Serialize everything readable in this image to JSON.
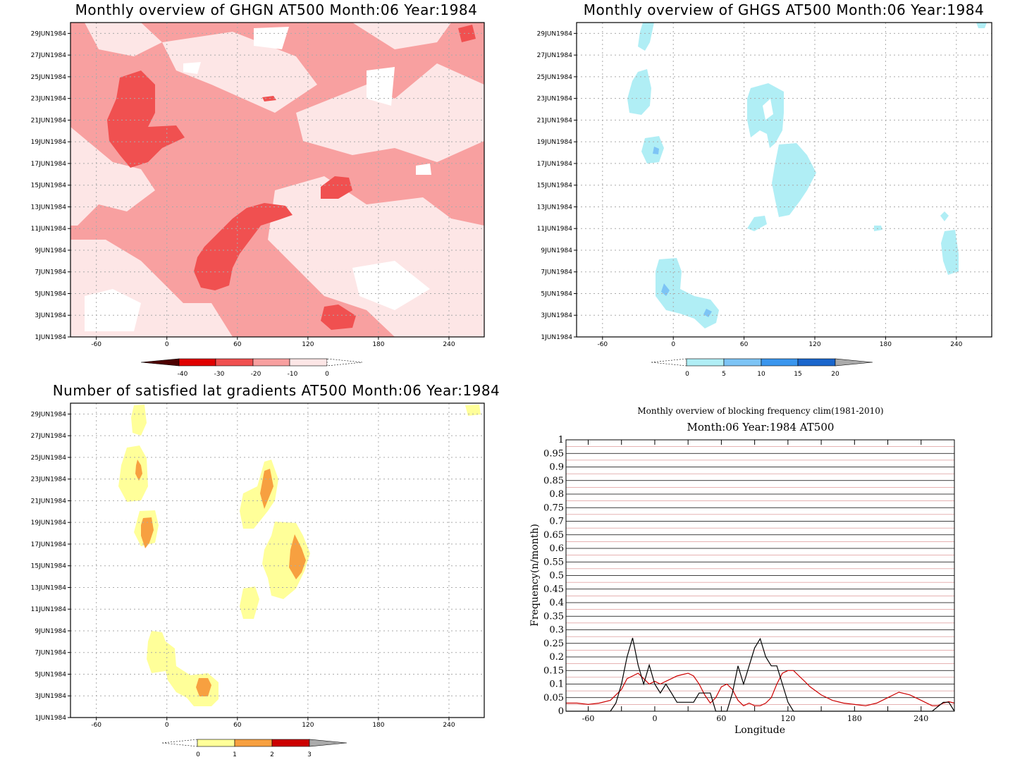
{
  "colors": {
    "ghgn_levels": [
      "#4d0000",
      "#e00000",
      "#f05050",
      "#f8a0a0",
      "#fde6e6"
    ],
    "ghgs_levels": [
      "#b0eef5",
      "#7dc4f5",
      "#3a96ee",
      "#1a66cc",
      "#aaaaaa"
    ],
    "nsg_levels": [
      "#ffff99",
      "#f7a040",
      "#cc0000",
      "#aaaaaa"
    ],
    "clim_line": "#cc0000",
    "year_line": "#000000"
  },
  "date_ticks": [
    "1JUN1984",
    "3JUN1984",
    "5JUN1984",
    "7JUN1984",
    "9JUN1984",
    "11JUN1984",
    "13JUN1984",
    "15JUN1984",
    "17JUN1984",
    "19JUN1984",
    "21JUN1984",
    "23JUN1984",
    "25JUN1984",
    "27JUN1984",
    "29JUN1984"
  ],
  "lon_ticks": [
    "-60",
    "0",
    "60",
    "120",
    "180",
    "240"
  ],
  "chart_data": [
    {
      "type": "heatmap",
      "title": "Monthly overview of GHGN AT500 Month:06 Year:1984",
      "x_range": [
        -82,
        270
      ],
      "y_range": [
        "1JUN1984",
        "30JUN1984"
      ],
      "grid": true,
      "colorbar": {
        "ticks": [
          "-40",
          "-30",
          "-20",
          "-10",
          "0"
        ]
      }
    },
    {
      "type": "heatmap",
      "title": "Monthly overview of GHGS AT500 Month:06 Year:1984",
      "x_range": [
        -82,
        270
      ],
      "y_range": [
        "1JUN1984",
        "30JUN1984"
      ],
      "grid": true,
      "colorbar": {
        "ticks": [
          "0",
          "5",
          "10",
          "15",
          "20"
        ]
      }
    },
    {
      "type": "heatmap",
      "title": "Number of satisfied lat gradients AT500 Month:06 Year:1984",
      "x_range": [
        -82,
        270
      ],
      "y_range": [
        "1JUN1984",
        "30JUN1984"
      ],
      "grid": true,
      "colorbar": {
        "ticks": [
          "0",
          "1",
          "2",
          "3"
        ]
      }
    },
    {
      "type": "line",
      "title": "Monthly overview of blocking frequency clim(1981-2010)",
      "subtitle": "Month:06 Year:1984  AT500",
      "xlabel": "Longitude",
      "ylabel": "Frequency(n/month)",
      "xlim": [
        -80,
        270
      ],
      "ylim": [
        0,
        1
      ],
      "x_ticks": [
        "-60",
        "0",
        "60",
        "120",
        "180",
        "240"
      ],
      "y_ticks": [
        "0",
        "0.05",
        "0.1",
        "0.15",
        "0.2",
        "0.25",
        "0.3",
        "0.35",
        "0.4",
        "0.45",
        "0.5",
        "0.55",
        "0.6",
        "0.65",
        "0.7",
        "0.75",
        "0.8",
        "0.85",
        "0.9",
        "0.95",
        "1"
      ],
      "grid": true,
      "series": [
        {
          "x": [
            -80,
            -70,
            -60,
            -50,
            -40,
            -30,
            -25,
            -20,
            -15,
            -10,
            -5,
            0,
            5,
            10,
            15,
            20,
            25,
            30,
            35,
            40,
            45,
            50,
            55,
            60,
            65,
            70,
            75,
            80,
            85,
            90,
            95,
            100,
            105,
            110,
            115,
            120,
            125,
            130,
            135,
            140,
            150,
            160,
            170,
            180,
            190,
            200,
            210,
            220,
            230,
            240,
            250,
            255,
            260,
            265,
            270
          ],
          "y": [
            0.03,
            0.03,
            0.025,
            0.03,
            0.04,
            0.08,
            0.12,
            0.13,
            0.14,
            0.12,
            0.1,
            0.11,
            0.1,
            0.11,
            0.12,
            0.13,
            0.135,
            0.14,
            0.13,
            0.1,
            0.06,
            0.03,
            0.05,
            0.09,
            0.1,
            0.08,
            0.04,
            0.02,
            0.03,
            0.02,
            0.02,
            0.03,
            0.05,
            0.1,
            0.14,
            0.15,
            0.15,
            0.13,
            0.11,
            0.09,
            0.06,
            0.04,
            0.03,
            0.025,
            0.02,
            0.03,
            0.05,
            0.07,
            0.06,
            0.04,
            0.02,
            0.02,
            0.03,
            0.035,
            0.03
          ]
        },
        {
          "x": [
            -80,
            -40,
            -35,
            -30,
            -25,
            -20,
            -15,
            -10,
            -5,
            0,
            5,
            10,
            15,
            20,
            25,
            30,
            35,
            40,
            45,
            50,
            55,
            60,
            65,
            70,
            75,
            80,
            85,
            90,
            95,
            100,
            105,
            110,
            115,
            120,
            125,
            130,
            135,
            140,
            150,
            200,
            250,
            260,
            265,
            270
          ],
          "y": [
            0,
            0,
            0.03,
            0.1,
            0.2,
            0.27,
            0.17,
            0.1,
            0.17,
            0.1,
            0.067,
            0.1,
            0.067,
            0.033,
            0.033,
            0.033,
            0.033,
            0.067,
            0.067,
            0.067,
            0,
            0,
            0,
            0.067,
            0.167,
            0.1,
            0.167,
            0.233,
            0.267,
            0.2,
            0.167,
            0.167,
            0.1,
            0.033,
            0,
            0,
            0,
            0,
            0,
            0,
            0,
            0.033,
            0.033,
            0
          ]
        }
      ]
    }
  ]
}
